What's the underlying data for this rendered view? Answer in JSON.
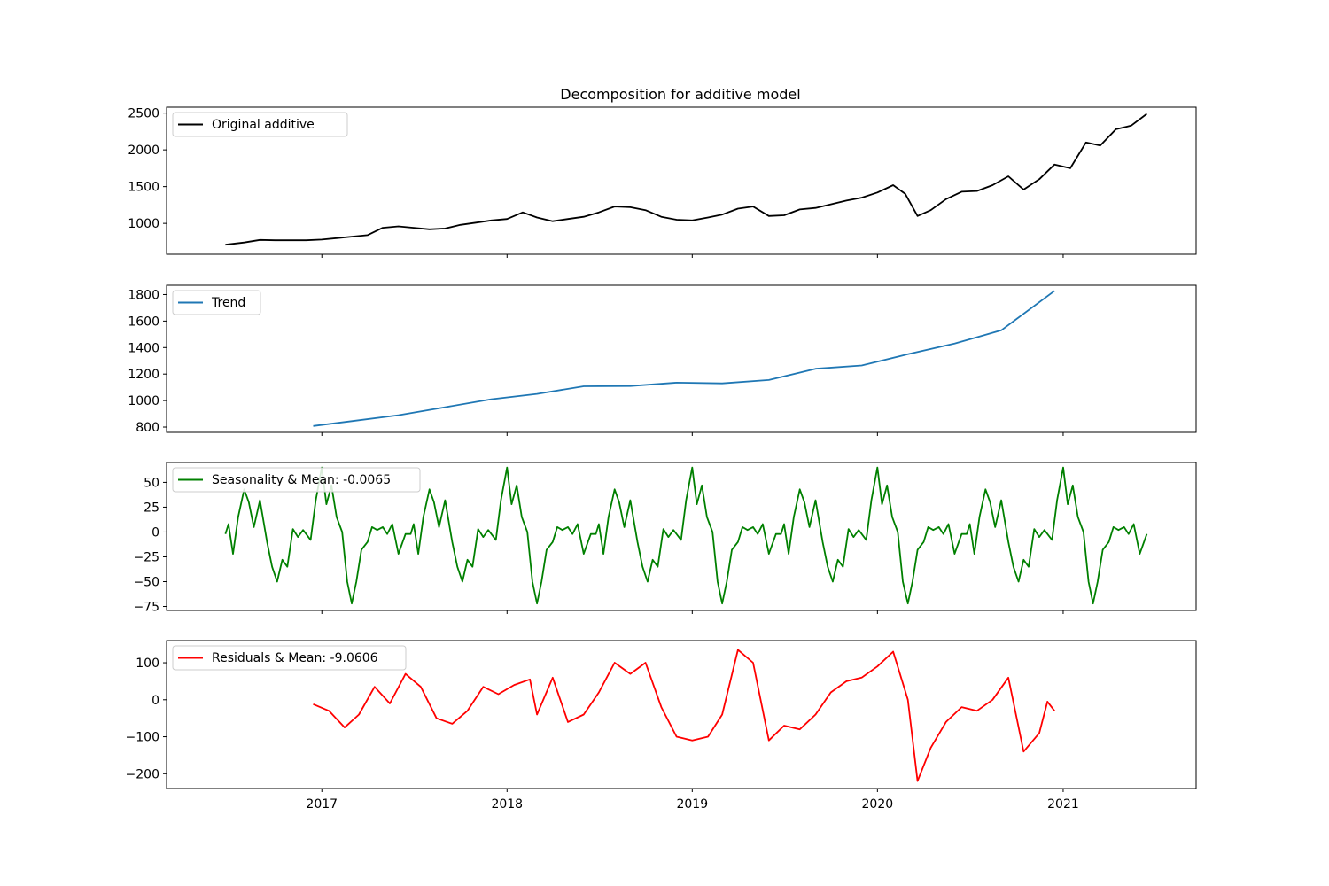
{
  "chart_data": {
    "type": "line",
    "title": "Decomposition for additive model",
    "x_axis": {
      "type": "date",
      "range": [
        "2016-03-01",
        "2021-09-20"
      ],
      "ticks": [
        "2017-01-01",
        "2018-01-01",
        "2019-01-01",
        "2020-01-01",
        "2021-01-01"
      ],
      "tick_labels": [
        "2017",
        "2018",
        "2019",
        "2020",
        "2021"
      ]
    },
    "panels": [
      {
        "ylim": [
          580,
          2580
        ],
        "yticks": [
          1000,
          1500,
          2000,
          2500
        ],
        "legend_position": "upper-left",
        "series": [
          {
            "name": "Original additive",
            "color": "#000000",
            "points": [
              [
                "2016-06-25",
                710
              ],
              [
                "2016-08-01",
                740
              ],
              [
                "2016-09-01",
                775
              ],
              [
                "2016-10-01",
                770
              ],
              [
                "2016-11-01",
                770
              ],
              [
                "2016-12-01",
                770
              ],
              [
                "2017-01-01",
                780
              ],
              [
                "2017-02-01",
                800
              ],
              [
                "2017-03-01",
                820
              ],
              [
                "2017-04-01",
                840
              ],
              [
                "2017-05-01",
                940
              ],
              [
                "2017-06-01",
                960
              ],
              [
                "2017-07-01",
                940
              ],
              [
                "2017-08-01",
                920
              ],
              [
                "2017-09-01",
                930
              ],
              [
                "2017-10-01",
                980
              ],
              [
                "2017-11-01",
                1010
              ],
              [
                "2017-12-01",
                1040
              ],
              [
                "2018-01-01",
                1060
              ],
              [
                "2018-02-01",
                1150
              ],
              [
                "2018-03-01",
                1080
              ],
              [
                "2018-04-01",
                1030
              ],
              [
                "2018-05-01",
                1060
              ],
              [
                "2018-06-01",
                1090
              ],
              [
                "2018-07-01",
                1150
              ],
              [
                "2018-08-01",
                1230
              ],
              [
                "2018-09-01",
                1220
              ],
              [
                "2018-10-01",
                1180
              ],
              [
                "2018-11-01",
                1090
              ],
              [
                "2018-12-01",
                1050
              ],
              [
                "2019-01-01",
                1040
              ],
              [
                "2019-02-01",
                1080
              ],
              [
                "2019-03-01",
                1120
              ],
              [
                "2019-04-01",
                1200
              ],
              [
                "2019-05-01",
                1230
              ],
              [
                "2019-06-01",
                1100
              ],
              [
                "2019-07-01",
                1110
              ],
              [
                "2019-08-01",
                1190
              ],
              [
                "2019-09-01",
                1210
              ],
              [
                "2019-10-01",
                1260
              ],
              [
                "2019-11-01",
                1310
              ],
              [
                "2019-12-01",
                1350
              ],
              [
                "2020-01-01",
                1420
              ],
              [
                "2020-02-01",
                1520
              ],
              [
                "2020-02-25",
                1400
              ],
              [
                "2020-03-20",
                1100
              ],
              [
                "2020-04-15",
                1180
              ],
              [
                "2020-05-15",
                1330
              ],
              [
                "2020-06-15",
                1430
              ],
              [
                "2020-07-15",
                1440
              ],
              [
                "2020-08-15",
                1520
              ],
              [
                "2020-09-15",
                1640
              ],
              [
                "2020-10-15",
                1460
              ],
              [
                "2020-11-15",
                1600
              ],
              [
                "2020-12-15",
                1800
              ],
              [
                "2021-01-15",
                1750
              ],
              [
                "2021-02-15",
                2100
              ],
              [
                "2021-03-15",
                2060
              ],
              [
                "2021-04-15",
                2280
              ],
              [
                "2021-05-15",
                2330
              ],
              [
                "2021-06-15",
                2490
              ]
            ]
          }
        ]
      },
      {
        "ylim": [
          760,
          1870
        ],
        "yticks": [
          800,
          1000,
          1200,
          1400,
          1600,
          1800
        ],
        "legend_position": "upper-left",
        "series": [
          {
            "name": "Trend",
            "color": "#1f77b4",
            "points": [
              [
                "2016-12-15",
                808
              ],
              [
                "2017-03-01",
                845
              ],
              [
                "2017-06-01",
                890
              ],
              [
                "2017-09-01",
                950
              ],
              [
                "2017-12-01",
                1010
              ],
              [
                "2018-03-01",
                1050
              ],
              [
                "2018-06-01",
                1108
              ],
              [
                "2018-09-01",
                1110
              ],
              [
                "2018-12-01",
                1135
              ],
              [
                "2019-03-01",
                1130
              ],
              [
                "2019-06-01",
                1155
              ],
              [
                "2019-09-01",
                1240
              ],
              [
                "2019-12-01",
                1265
              ],
              [
                "2020-03-01",
                1350
              ],
              [
                "2020-06-01",
                1430
              ],
              [
                "2020-09-01",
                1530
              ],
              [
                "2020-12-15",
                1828
              ]
            ]
          }
        ]
      },
      {
        "ylim": [
          -79,
          70
        ],
        "yticks": [
          -75,
          -50,
          -25,
          0,
          25,
          50
        ],
        "legend_position": "upper-left",
        "series": [
          {
            "name": "Seasonality & Mean: -0.0065",
            "color": "#008000",
            "period_days": 365.25,
            "cycles_start": "2016-06-25",
            "cycles_end": "2021-06-15",
            "one_cycle": [
              [
                "06-25",
                -2
              ],
              [
                "07-01",
                8
              ],
              [
                "07-10",
                -22
              ],
              [
                "07-20",
                15
              ],
              [
                "08-01",
                43
              ],
              [
                "08-10",
                30
              ],
              [
                "08-20",
                5
              ],
              [
                "09-01",
                32
              ],
              [
                "09-15",
                -10
              ],
              [
                "09-25",
                -35
              ],
              [
                "10-05",
                -50
              ],
              [
                "10-15",
                -28
              ],
              [
                "10-25",
                -35
              ],
              [
                "11-05",
                3
              ],
              [
                "11-15",
                -5
              ],
              [
                "11-25",
                2
              ],
              [
                "12-10",
                -8
              ],
              [
                "12-20",
                32
              ],
              [
                "01-01",
                65
              ],
              [
                "01-10",
                28
              ],
              [
                "01-20",
                47
              ],
              [
                "01-30",
                15
              ],
              [
                "02-10",
                0
              ],
              [
                "02-20",
                -50
              ],
              [
                "03-01",
                -72
              ],
              [
                "03-10",
                -50
              ],
              [
                "03-20",
                -18
              ],
              [
                "04-01",
                -10
              ],
              [
                "04-10",
                5
              ],
              [
                "04-20",
                2
              ],
              [
                "05-01",
                5
              ],
              [
                "05-10",
                -2
              ],
              [
                "05-20",
                8
              ],
              [
                "06-01",
                -22
              ],
              [
                "06-15",
                -2
              ]
            ]
          }
        ]
      },
      {
        "ylim": [
          -240,
          160
        ],
        "yticks": [
          -200,
          -100,
          0,
          100
        ],
        "legend_position": "upper-left",
        "series": [
          {
            "name": "Residuals & Mean: -9.0606",
            "color": "#ff0000",
            "points": [
              [
                "2016-12-15",
                -12
              ],
              [
                "2017-01-15",
                -30
              ],
              [
                "2017-02-15",
                -75
              ],
              [
                "2017-03-15",
                -40
              ],
              [
                "2017-04-15",
                35
              ],
              [
                "2017-05-15",
                -10
              ],
              [
                "2017-06-15",
                70
              ],
              [
                "2017-07-15",
                35
              ],
              [
                "2017-08-15",
                -50
              ],
              [
                "2017-09-15",
                -65
              ],
              [
                "2017-10-15",
                -30
              ],
              [
                "2017-11-15",
                35
              ],
              [
                "2017-12-15",
                15
              ],
              [
                "2018-01-15",
                40
              ],
              [
                "2018-02-15",
                55
              ],
              [
                "2018-03-01",
                -40
              ],
              [
                "2018-04-01",
                60
              ],
              [
                "2018-05-01",
                -60
              ],
              [
                "2018-06-01",
                -40
              ],
              [
                "2018-07-01",
                20
              ],
              [
                "2018-08-01",
                100
              ],
              [
                "2018-09-01",
                70
              ],
              [
                "2018-10-01",
                100
              ],
              [
                "2018-11-01",
                -20
              ],
              [
                "2018-12-01",
                -100
              ],
              [
                "2019-01-01",
                -110
              ],
              [
                "2019-02-01",
                -100
              ],
              [
                "2019-03-01",
                -40
              ],
              [
                "2019-04-01",
                135
              ],
              [
                "2019-05-01",
                100
              ],
              [
                "2019-06-01",
                -110
              ],
              [
                "2019-07-01",
                -70
              ],
              [
                "2019-08-01",
                -80
              ],
              [
                "2019-09-01",
                -40
              ],
              [
                "2019-10-01",
                20
              ],
              [
                "2019-11-01",
                50
              ],
              [
                "2019-12-01",
                60
              ],
              [
                "2020-01-01",
                90
              ],
              [
                "2020-02-01",
                130
              ],
              [
                "2020-03-01",
                0
              ],
              [
                "2020-03-20",
                -220
              ],
              [
                "2020-04-15",
                -130
              ],
              [
                "2020-05-15",
                -60
              ],
              [
                "2020-06-15",
                -20
              ],
              [
                "2020-07-15",
                -30
              ],
              [
                "2020-08-15",
                0
              ],
              [
                "2020-09-15",
                60
              ],
              [
                "2020-10-15",
                -140
              ],
              [
                "2020-11-15",
                -90
              ],
              [
                "2020-12-01",
                -5
              ],
              [
                "2020-12-15",
                -30
              ]
            ]
          }
        ]
      }
    ]
  }
}
